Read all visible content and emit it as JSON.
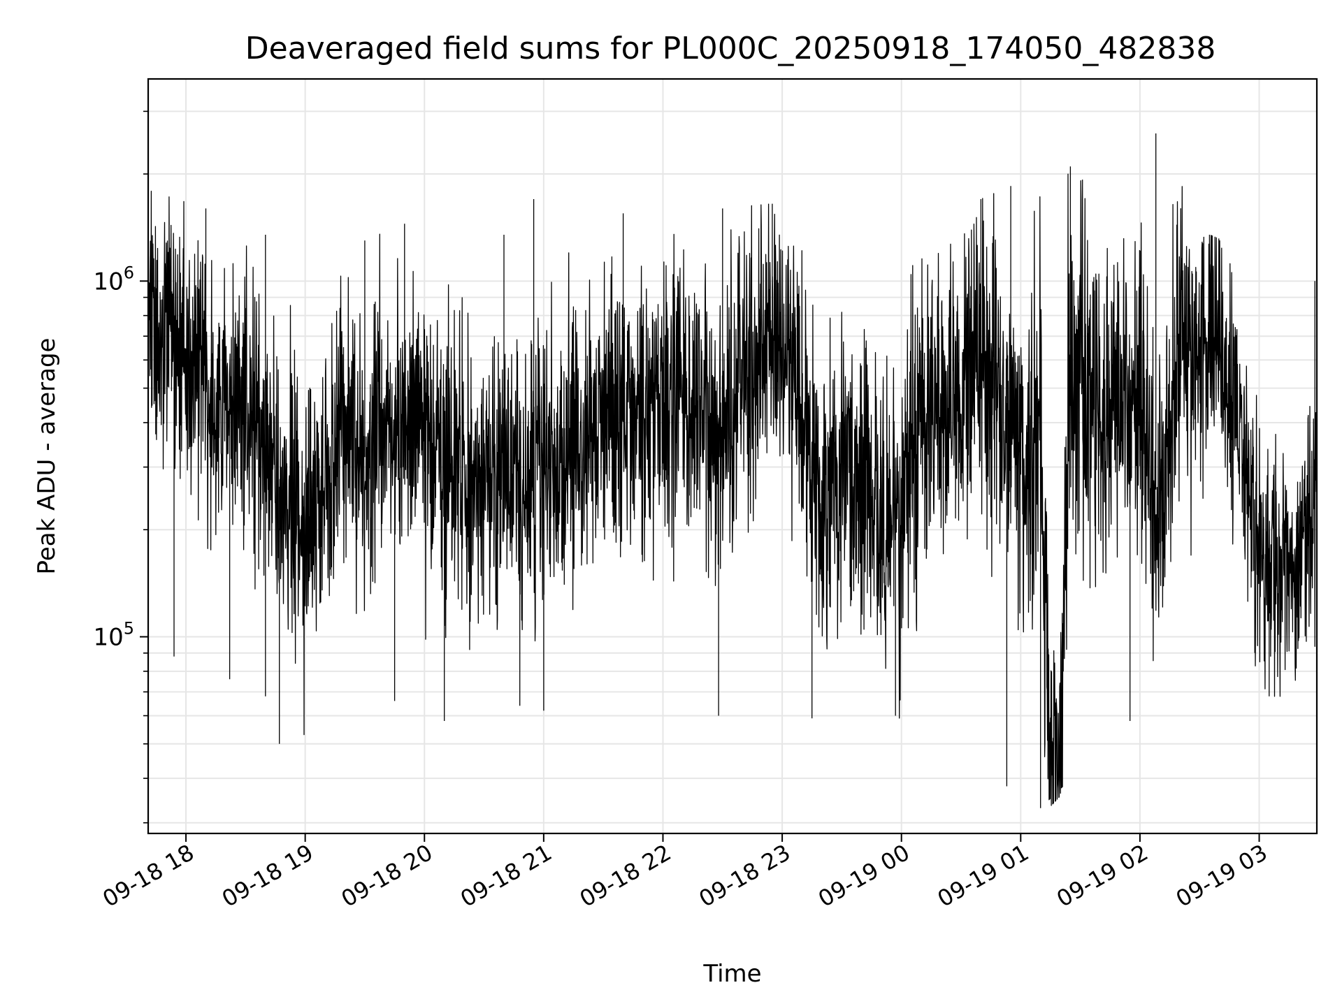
{
  "chart_data": {
    "type": "line",
    "title": "Deaveraged field sums for PL000C_20250918_174050_482838",
    "xlabel": "Time",
    "ylabel": "Peak ADU - average",
    "yscale": "log",
    "grid": true,
    "xlim": [
      "2025-09-18 17:41",
      "2025-09-19 03:29"
    ],
    "ylim": [
      28000,
      3700000
    ],
    "x_tick_labels": [
      "09-18 18",
      "09-18 19",
      "09-18 20",
      "09-18 21",
      "09-18 22",
      "09-18 23",
      "09-19 00",
      "09-19 01",
      "09-19 02",
      "09-19 03"
    ],
    "y_tick_labels": [
      {
        "base": "10",
        "exponent": "5",
        "value": 100000
      },
      {
        "base": "10",
        "exponent": "6",
        "value": 1000000
      }
    ],
    "line_color": "#000000",
    "series": [
      {
        "points": [
          [
            "2025-09-18 17:41",
            700000
          ],
          [
            "2025-09-18 17:50",
            760000
          ],
          [
            "2025-09-18 18:00",
            620000
          ],
          [
            "2025-09-18 18:10",
            520000
          ],
          [
            "2025-09-18 18:20",
            430000
          ],
          [
            "2025-09-18 18:30",
            470000
          ],
          [
            "2025-09-18 18:40",
            330000
          ],
          [
            "2025-09-18 18:50",
            240000
          ],
          [
            "2025-09-18 19:00",
            200000
          ],
          [
            "2025-09-18 19:10",
            300000
          ],
          [
            "2025-09-18 19:20",
            380000
          ],
          [
            "2025-09-18 19:30",
            320000
          ],
          [
            "2025-09-18 19:40",
            360000
          ],
          [
            "2025-09-18 19:50",
            350000
          ],
          [
            "2025-09-18 20:00",
            400000
          ],
          [
            "2025-09-18 20:10",
            310000
          ],
          [
            "2025-09-18 20:20",
            270000
          ],
          [
            "2025-09-18 20:30",
            260000
          ],
          [
            "2025-09-18 20:40",
            300000
          ],
          [
            "2025-09-18 20:50",
            260000
          ],
          [
            "2025-09-18 21:00",
            310000
          ],
          [
            "2025-09-18 21:10",
            330000
          ],
          [
            "2025-09-18 21:20",
            360000
          ],
          [
            "2025-09-18 21:30",
            420000
          ],
          [
            "2025-09-18 21:40",
            460000
          ],
          [
            "2025-09-18 21:50",
            400000
          ],
          [
            "2025-09-18 22:00",
            470000
          ],
          [
            "2025-09-18 22:10",
            500000
          ],
          [
            "2025-09-18 22:20",
            440000
          ],
          [
            "2025-09-18 22:30",
            330000
          ],
          [
            "2025-09-18 22:40",
            580000
          ],
          [
            "2025-09-18 22:50",
            660000
          ],
          [
            "2025-09-18 23:00",
            620000
          ],
          [
            "2025-09-18 23:10",
            470000
          ],
          [
            "2025-09-18 23:20",
            230000
          ],
          [
            "2025-09-18 23:30",
            330000
          ],
          [
            "2025-09-18 23:40",
            260000
          ],
          [
            "2025-09-18 23:50",
            210000
          ],
          [
            "2025-09-19 00:00",
            250000
          ],
          [
            "2025-09-19 00:10",
            390000
          ],
          [
            "2025-09-19 00:20",
            470000
          ],
          [
            "2025-09-19 00:30",
            480000
          ],
          [
            "2025-09-19 00:40",
            570000
          ],
          [
            "2025-09-19 00:50",
            520000
          ],
          [
            "2025-09-19 01:00",
            330000
          ],
          [
            "2025-09-19 01:10",
            420000
          ],
          [
            "2025-09-19 01:15",
            42000
          ],
          [
            "2025-09-19 01:20",
            45000
          ],
          [
            "2025-09-19 01:25",
            660000
          ],
          [
            "2025-09-19 01:30",
            560000
          ],
          [
            "2025-09-19 01:40",
            380000
          ],
          [
            "2025-09-19 01:50",
            500000
          ],
          [
            "2025-09-19 02:00",
            420000
          ],
          [
            "2025-09-19 02:10",
            230000
          ],
          [
            "2025-09-19 02:20",
            680000
          ],
          [
            "2025-09-19 02:30",
            650000
          ],
          [
            "2025-09-19 02:40",
            620000
          ],
          [
            "2025-09-19 02:50",
            420000
          ],
          [
            "2025-09-19 03:00",
            170000
          ],
          [
            "2025-09-19 03:10",
            150000
          ],
          [
            "2025-09-19 03:20",
            170000
          ],
          [
            "2025-09-19 03:29",
            240000
          ]
        ],
        "envelope_max": [
          [
            "2025-09-18 17:41",
            1800000
          ],
          [
            "2025-09-18 18:10",
            1600000
          ],
          [
            "2025-09-18 18:40",
            1350000
          ],
          [
            "2025-09-18 19:30",
            1300000
          ],
          [
            "2025-09-18 19:50",
            1450000
          ],
          [
            "2025-09-18 20:40",
            1350000
          ],
          [
            "2025-09-18 20:55",
            1700000
          ],
          [
            "2025-09-18 21:40",
            1550000
          ],
          [
            "2025-09-18 22:30",
            1600000
          ],
          [
            "2025-09-18 22:55",
            1650000
          ],
          [
            "2025-09-19 00:40",
            1700000
          ],
          [
            "2025-09-19 00:55",
            1850000
          ],
          [
            "2025-09-19 01:25",
            2100000
          ],
          [
            "2025-09-19 02:08",
            2600000
          ],
          [
            "2025-09-19 02:35",
            1350000
          ],
          [
            "2025-09-19 03:28",
            1000000
          ]
        ],
        "envelope_min": [
          [
            "2025-09-18 17:54",
            88000
          ],
          [
            "2025-09-18 18:22",
            76000
          ],
          [
            "2025-09-18 18:40",
            68000
          ],
          [
            "2025-09-18 18:47",
            50000
          ],
          [
            "2025-09-18 19:45",
            66000
          ],
          [
            "2025-09-18 20:10",
            58000
          ],
          [
            "2025-09-18 20:48",
            64000
          ],
          [
            "2025-09-18 21:00",
            62000
          ],
          [
            "2025-09-18 22:28",
            60000
          ],
          [
            "2025-09-18 23:15",
            59000
          ],
          [
            "2025-09-18 23:57",
            60000
          ],
          [
            "2025-09-19 00:53",
            38000
          ],
          [
            "2025-09-19 01:10",
            33000
          ],
          [
            "2025-09-19 01:55",
            58000
          ],
          [
            "2025-09-19 03:05",
            68000
          ]
        ]
      }
    ]
  }
}
